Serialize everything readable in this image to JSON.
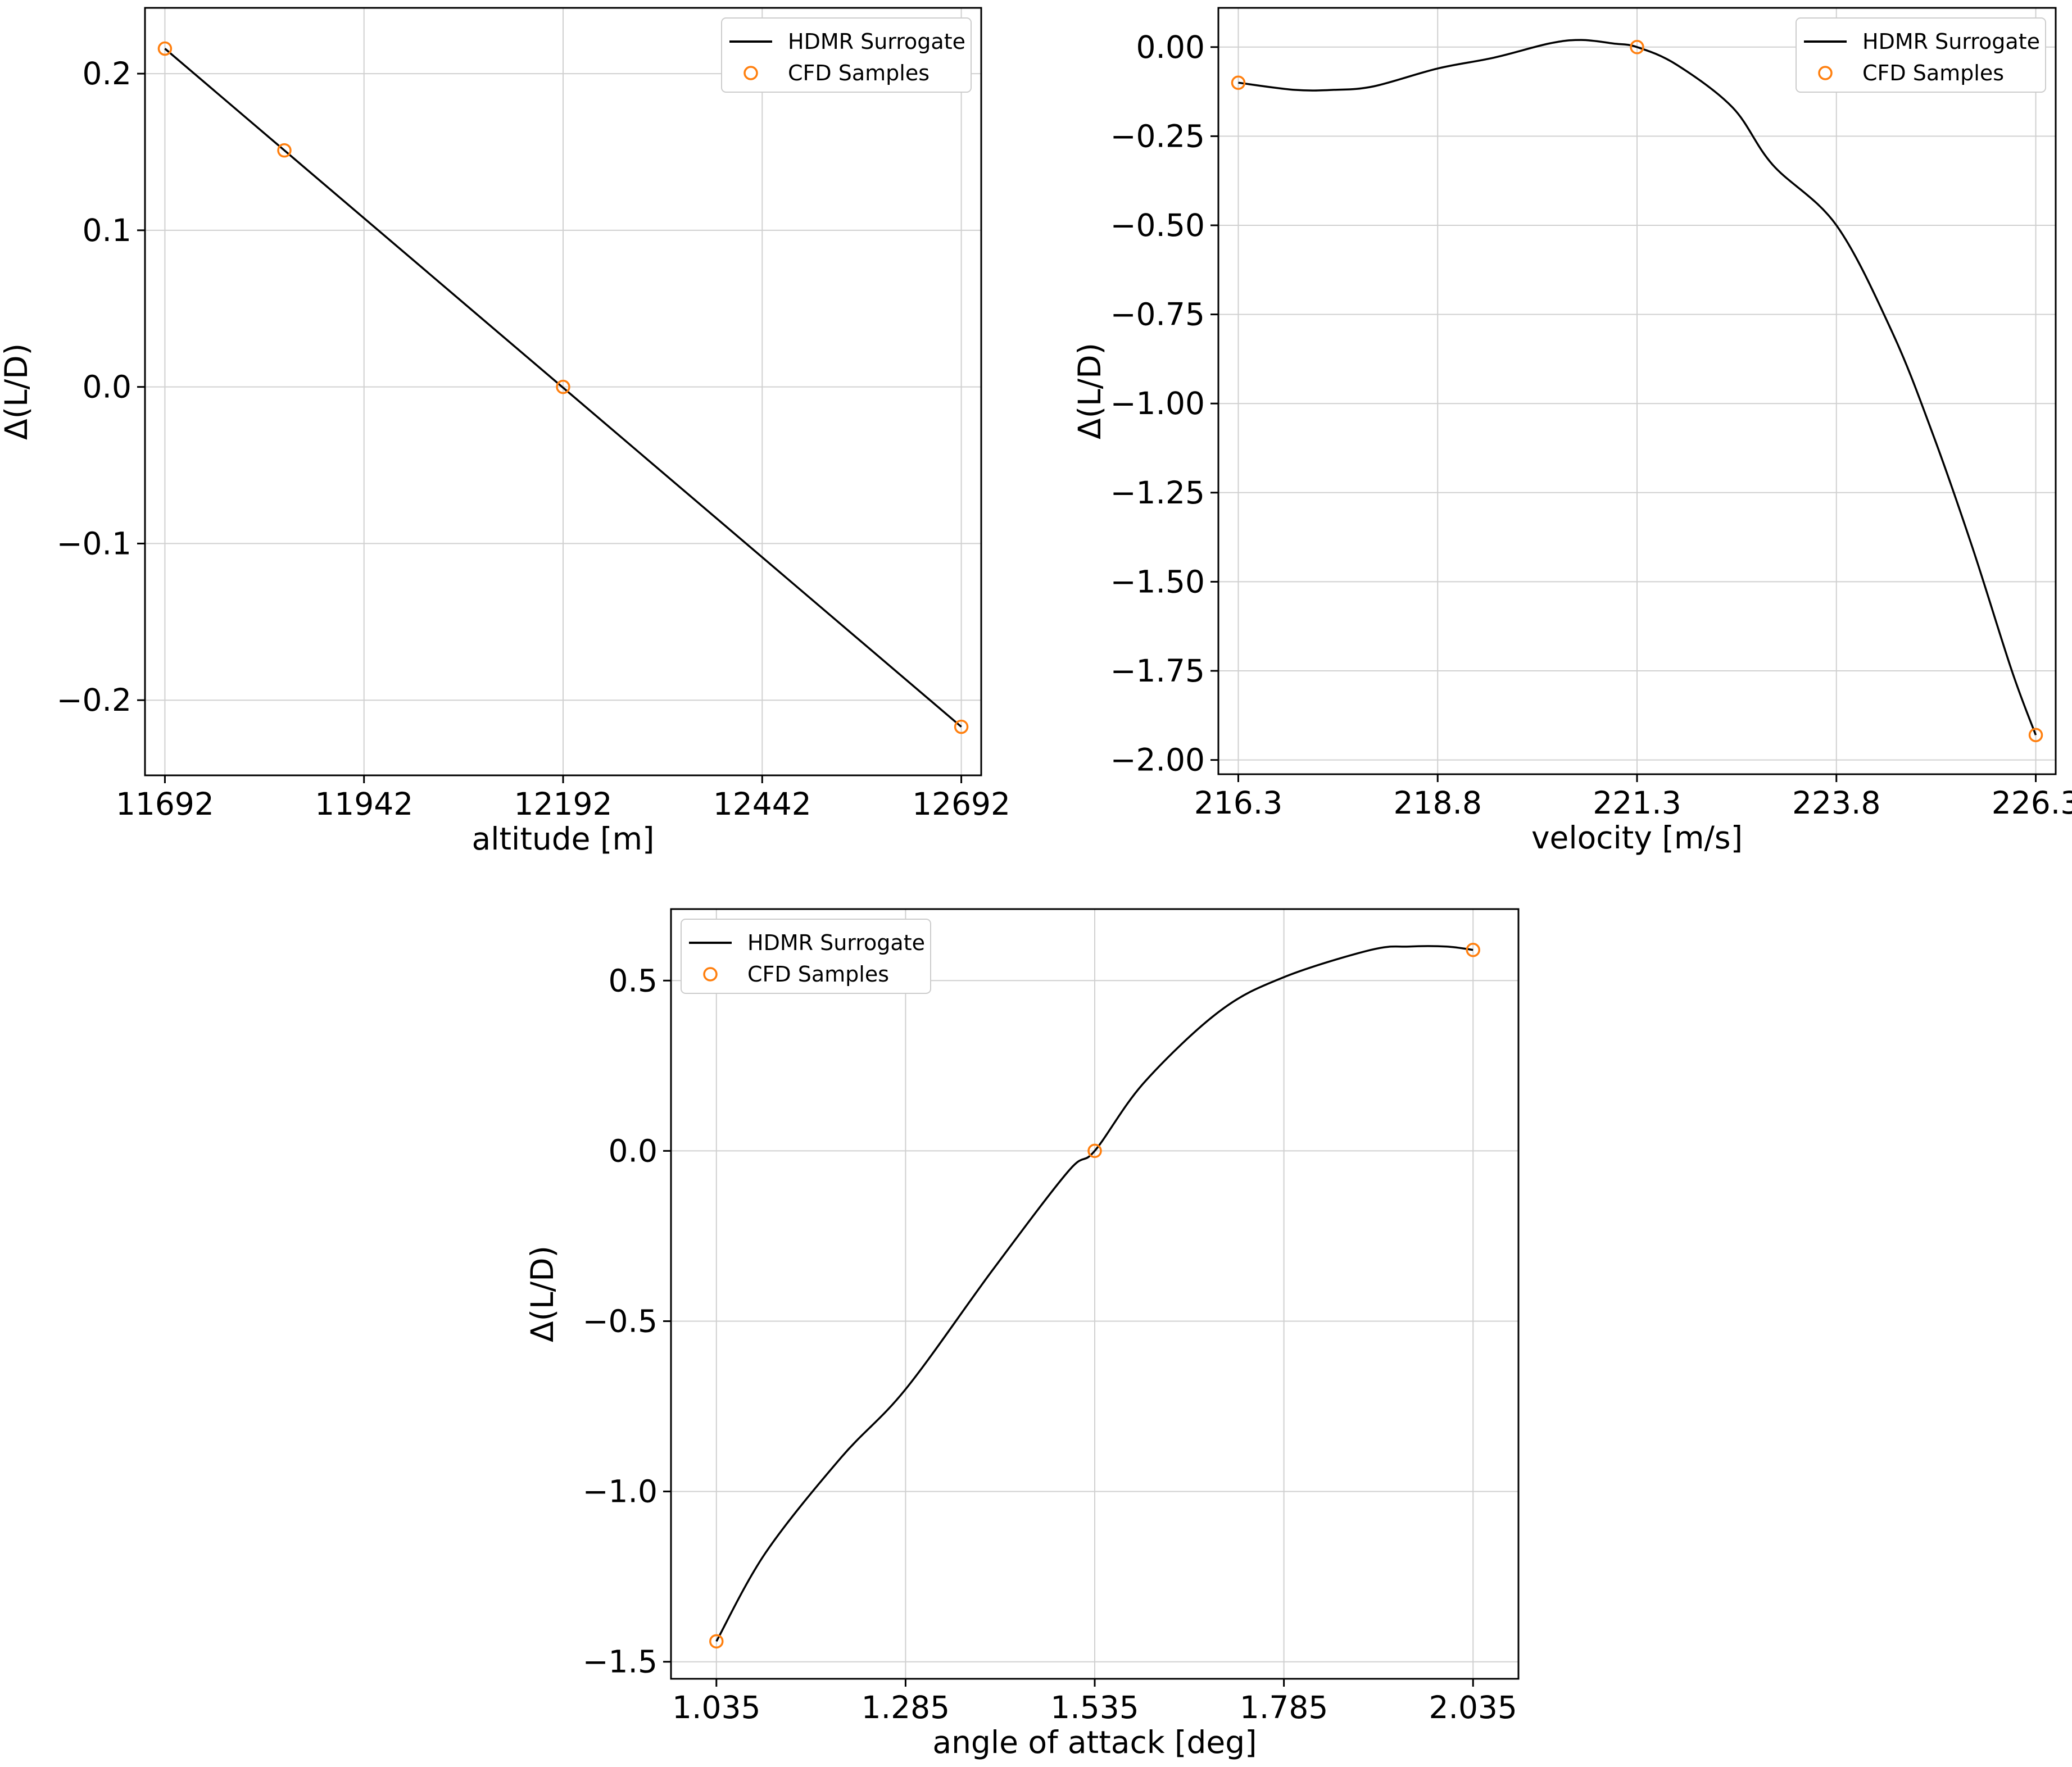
{
  "colors": {
    "surrogate": "#000000",
    "samples": "#ff7f0e",
    "grid": "#d0d0d0",
    "legend_border": "#cccccc"
  },
  "legend": {
    "surrogate_label": "HDMR Surrogate",
    "samples_label": "CFD Samples"
  },
  "chart_data": [
    {
      "type": "line",
      "xlabel": "altitude [m]",
      "ylabel": "Δ(L/D)",
      "xlim": [
        11667,
        12717
      ],
      "ylim": [
        -0.248,
        0.242
      ],
      "xticks": [
        11692,
        11942,
        12192,
        12442,
        12692
      ],
      "xtick_labels": [
        "11692",
        "11942",
        "12192",
        "12442",
        "12692"
      ],
      "yticks": [
        -0.2,
        -0.1,
        0.0,
        0.1,
        0.2
      ],
      "ytick_labels": [
        "−0.2",
        "−0.1",
        "0.0",
        "0.1",
        "0.2"
      ],
      "grid": true,
      "legend_position": "top-right",
      "series": [
        {
          "name": "HDMR Surrogate",
          "kind": "line",
          "x": [
            11692,
            12692
          ],
          "y": [
            0.216,
            -0.217
          ]
        },
        {
          "name": "CFD Samples",
          "kind": "markers",
          "x": [
            11692,
            11842,
            12192,
            12692
          ],
          "y": [
            0.216,
            0.151,
            0.0,
            -0.217
          ]
        }
      ]
    },
    {
      "type": "line",
      "xlabel": "velocity [m/s]",
      "ylabel": "Δ(L/D)",
      "xlim": [
        216.05,
        226.55
      ],
      "ylim": [
        -2.04,
        0.11
      ],
      "xticks": [
        216.3,
        218.8,
        221.3,
        223.8,
        226.3
      ],
      "xtick_labels": [
        "216.3",
        "218.8",
        "221.3",
        "223.8",
        "226.3"
      ],
      "yticks": [
        -2.0,
        -1.75,
        -1.5,
        -1.25,
        -1.0,
        -0.75,
        -0.5,
        -0.25,
        0.0
      ],
      "ytick_labels": [
        "−2.00",
        "−1.75",
        "−1.50",
        "−1.25",
        "−1.00",
        "−0.75",
        "−0.50",
        "−0.25",
        "0.00"
      ],
      "grid": true,
      "legend_position": "top-right",
      "series": [
        {
          "name": "HDMR Surrogate",
          "kind": "curve",
          "x": [
            216.3,
            217.0,
            217.5,
            218.0,
            218.8,
            219.5,
            220.2,
            220.6,
            221.0,
            221.3,
            221.8,
            222.5,
            223.0,
            223.8,
            224.5,
            225.0,
            225.5,
            226.0,
            226.3
          ],
          "y": [
            -0.1,
            -0.12,
            -0.12,
            -0.11,
            -0.06,
            -0.03,
            0.01,
            0.02,
            0.01,
            0.0,
            -0.05,
            -0.17,
            -0.33,
            -0.5,
            -0.8,
            -1.08,
            -1.4,
            -1.75,
            -1.93
          ]
        },
        {
          "name": "CFD Samples",
          "kind": "markers",
          "x": [
            216.3,
            221.3,
            226.3
          ],
          "y": [
            -0.1,
            0.0,
            -1.93
          ]
        }
      ]
    },
    {
      "type": "line",
      "xlabel": "angle of attack [deg]",
      "ylabel": "Δ(L/D)",
      "xlim": [
        0.975,
        2.095
      ],
      "ylim": [
        -1.55,
        0.71
      ],
      "xticks": [
        1.035,
        1.285,
        1.535,
        1.785,
        2.035
      ],
      "xtick_labels": [
        "1.035",
        "1.285",
        "1.535",
        "1.785",
        "2.035"
      ],
      "yticks": [
        -1.5,
        -1.0,
        -0.5,
        0.0,
        0.5
      ],
      "ytick_labels": [
        "−1.5",
        "−1.0",
        "−0.5",
        "0.0",
        "0.5"
      ],
      "grid": true,
      "legend_position": "top-left",
      "series": [
        {
          "name": "HDMR Surrogate",
          "kind": "curve",
          "x": [
            1.035,
            1.1,
            1.2,
            1.285,
            1.4,
            1.5,
            1.535,
            1.6,
            1.7,
            1.785,
            1.9,
            1.95,
            2.0,
            2.035
          ],
          "y": [
            -1.44,
            -1.18,
            -0.9,
            -0.7,
            -0.35,
            -0.06,
            0.0,
            0.2,
            0.41,
            0.51,
            0.59,
            0.6,
            0.6,
            0.59
          ]
        },
        {
          "name": "CFD Samples",
          "kind": "markers",
          "x": [
            1.035,
            1.535,
            2.035
          ],
          "y": [
            -1.44,
            0.0,
            0.59
          ]
        }
      ]
    }
  ]
}
